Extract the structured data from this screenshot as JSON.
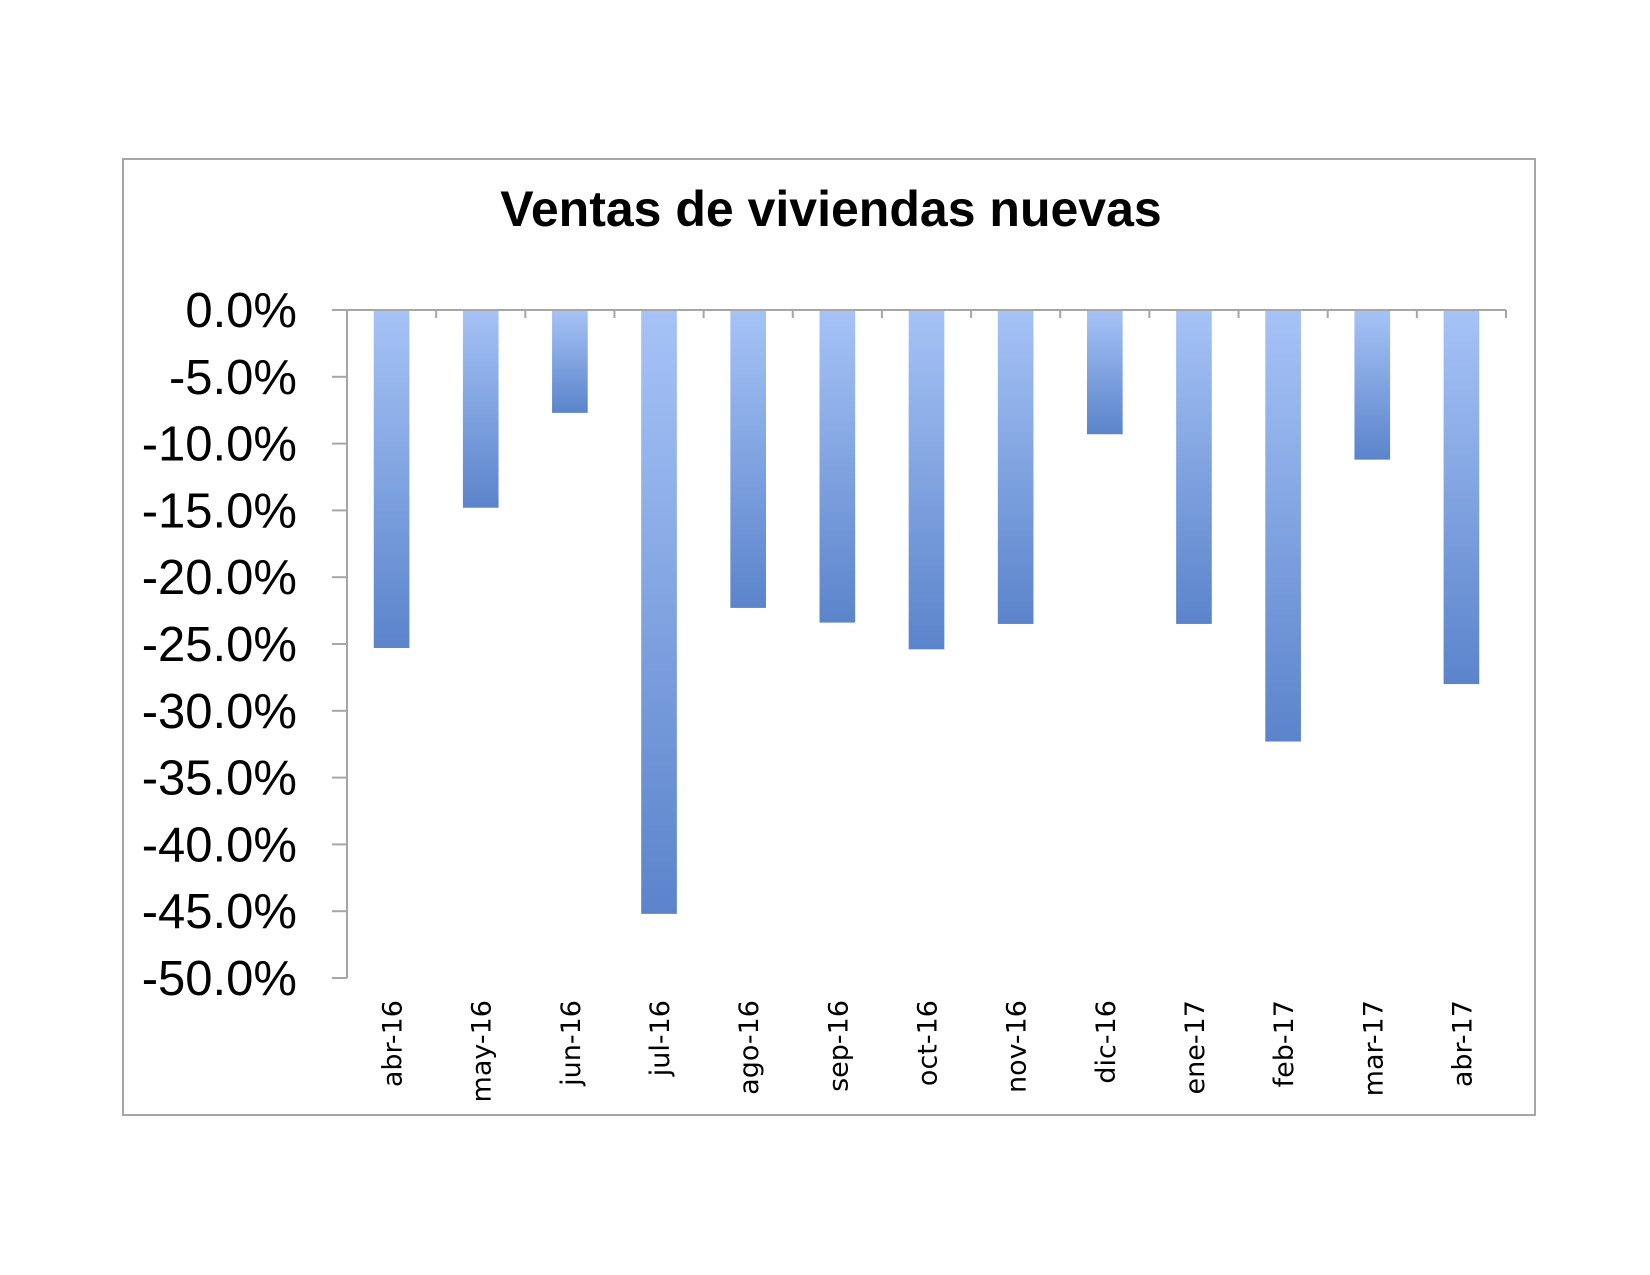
{
  "chart_data": {
    "type": "bar",
    "title": "Ventas de viviendas nuevas",
    "xlabel": "",
    "ylabel": "",
    "categories": [
      "abr-16",
      "may-16",
      "jun-16",
      "jul-16",
      "ago-16",
      "sep-16",
      "oct-16",
      "nov-16",
      "dic-16",
      "ene-17",
      "feb-17",
      "mar-17",
      "abr-17"
    ],
    "values": [
      -25.3,
      -14.8,
      -7.7,
      -45.2,
      -22.3,
      -23.4,
      -25.4,
      -23.5,
      -9.3,
      -23.5,
      -32.3,
      -11.2,
      -28.0
    ],
    "ylim": [
      -50,
      0
    ],
    "yticks": [
      "0.0%",
      "-5.0%",
      "-10.0%",
      "-15.0%",
      "-20.0%",
      "-25.0%",
      "-30.0%",
      "-35.0%",
      "-40.0%",
      "-45.0%",
      "-50.0%"
    ],
    "ytick_values": [
      0,
      -5,
      -10,
      -15,
      -20,
      -25,
      -30,
      -35,
      -40,
      -45,
      -50
    ],
    "grid": false,
    "legend": "none",
    "colors": {
      "bar_top": "#a6c3f6",
      "bar_bottom": "#5b84cb",
      "axis": "#a6a6a6",
      "frame": "#a6a6a6"
    }
  }
}
